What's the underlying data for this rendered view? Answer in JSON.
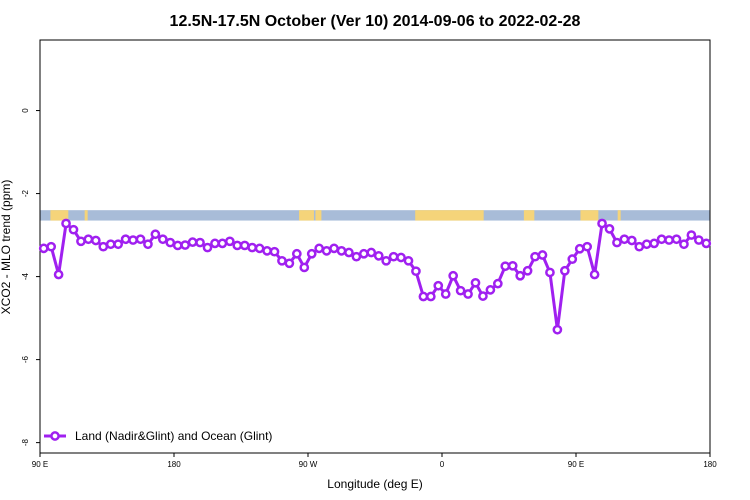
{
  "chart_data": {
    "type": "line",
    "title": "12.5N-17.5N October (Ver 10)   2014-09-06 to 2022-02-28",
    "xlabel": "Longitude (deg E)",
    "ylabel": "XCO2 - MLO trend (ppm)",
    "xlim": [
      90,
      540
    ],
    "ylim": [
      -8.25,
      1.7
    ],
    "x_ticks": [
      {
        "value": 90,
        "label": "90 E"
      },
      {
        "value": 180,
        "label": "180"
      },
      {
        "value": 270,
        "label": "90 W"
      },
      {
        "value": 360,
        "label": "0"
      },
      {
        "value": 450,
        "label": "90 E"
      },
      {
        "value": 540,
        "label": "180"
      }
    ],
    "y_ticks": [
      {
        "value": 0,
        "label": "0"
      },
      {
        "value": -2,
        "label": "-2"
      },
      {
        "value": -4,
        "label": "-4"
      },
      {
        "value": -6,
        "label": "-6"
      },
      {
        "value": -8,
        "label": "-8"
      }
    ],
    "grid": false,
    "legend_position": "bottom-left",
    "land_band": {
      "y_range": [
        -2.65,
        -2.4
      ],
      "ocean_color": "#a8bcd8",
      "land_color": "#f5d47a",
      "land_segments": [
        [
          97,
          109
        ],
        [
          120,
          122
        ],
        [
          264,
          274
        ],
        [
          275,
          279
        ],
        [
          342,
          388
        ],
        [
          415,
          422
        ],
        [
          453,
          465
        ],
        [
          478,
          480
        ]
      ]
    },
    "series": [
      {
        "name": "Land (Nadir&Glint) and Ocean (Glint)",
        "color": "#a020f0",
        "x": [
          92.5,
          97.5,
          102.5,
          107.5,
          112.5,
          117.5,
          122.5,
          127.5,
          132.5,
          137.5,
          142.5,
          147.5,
          152.5,
          157.5,
          162.5,
          167.5,
          172.5,
          177.5,
          182.5,
          187.5,
          192.5,
          197.5,
          202.5,
          207.5,
          212.5,
          217.5,
          222.5,
          227.5,
          232.5,
          237.5,
          242.5,
          247.5,
          252.5,
          257.5,
          262.5,
          267.5,
          272.5,
          277.5,
          282.5,
          287.5,
          292.5,
          297.5,
          302.5,
          307.5,
          312.5,
          317.5,
          322.5,
          327.5,
          332.5,
          337.5,
          342.5,
          347.5,
          352.5,
          357.5,
          362.5,
          367.5,
          372.5,
          377.5,
          382.5,
          387.5,
          392.5,
          397.5,
          402.5,
          407.5,
          412.5,
          417.5,
          422.5,
          427.5,
          432.5,
          437.5,
          442.5,
          447.5,
          452.5,
          457.5,
          462.5,
          467.5,
          472.5,
          477.5,
          482.5,
          487.5,
          492.5,
          497.5,
          502.5,
          507.5,
          512.5,
          517.5,
          522.5,
          527.5,
          532.5,
          537.5
        ],
        "y": [
          -3.32,
          -3.28,
          -3.95,
          -2.72,
          -2.87,
          -3.15,
          -3.1,
          -3.13,
          -3.28,
          -3.22,
          -3.22,
          -3.1,
          -3.12,
          -3.1,
          -3.22,
          -2.98,
          -3.1,
          -3.18,
          -3.25,
          -3.24,
          -3.17,
          -3.18,
          -3.3,
          -3.2,
          -3.2,
          -3.15,
          -3.25,
          -3.25,
          -3.3,
          -3.32,
          -3.38,
          -3.4,
          -3.62,
          -3.68,
          -3.45,
          -3.78,
          -3.45,
          -3.32,
          -3.38,
          -3.32,
          -3.38,
          -3.42,
          -3.52,
          -3.45,
          -3.42,
          -3.5,
          -3.62,
          -3.52,
          -3.54,
          -3.62,
          -3.87,
          -4.48,
          -4.48,
          -4.22,
          -4.42,
          -3.98,
          -4.34,
          -4.42,
          -4.15,
          -4.47,
          -4.32,
          -4.17,
          -3.75,
          -3.74,
          -3.98,
          -3.86,
          -3.52,
          -3.48,
          -3.9,
          -5.28,
          -3.86,
          -3.58,
          -3.33,
          -3.28,
          -3.95,
          -2.72,
          -2.85,
          -3.18,
          -3.1,
          -3.13,
          -3.28,
          -3.22,
          -3.2,
          -3.1,
          -3.12,
          -3.1,
          -3.22,
          -3.0,
          -3.12,
          -3.2
        ]
      }
    ]
  }
}
